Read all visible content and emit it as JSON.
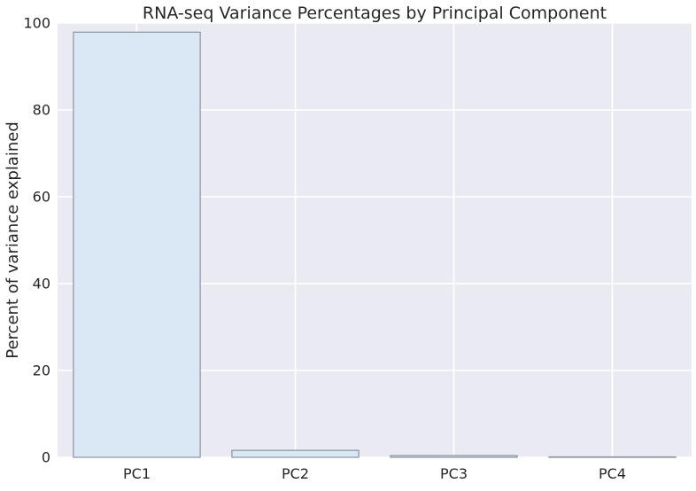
{
  "chart_data": {
    "type": "bar",
    "title": "RNA-seq Variance Percentages by Principal Component",
    "xlabel": "",
    "ylabel": "Percent of variance explained",
    "categories": [
      "PC1",
      "PC2",
      "PC3",
      "PC4"
    ],
    "values": [
      97.9,
      1.6,
      0.4,
      0.1
    ],
    "ylim": [
      0,
      100
    ],
    "yticks": [
      0,
      20,
      40,
      60,
      80,
      100
    ],
    "ytick_labels": [
      "0",
      "20",
      "40",
      "60",
      "80",
      "100"
    ],
    "grid": true,
    "legend": "none",
    "colors": {
      "plot_background": "#eaeaf2",
      "grid": "#ffffff",
      "bar_fill": "#dae7f5",
      "bar_edge": "#8c929e"
    }
  }
}
